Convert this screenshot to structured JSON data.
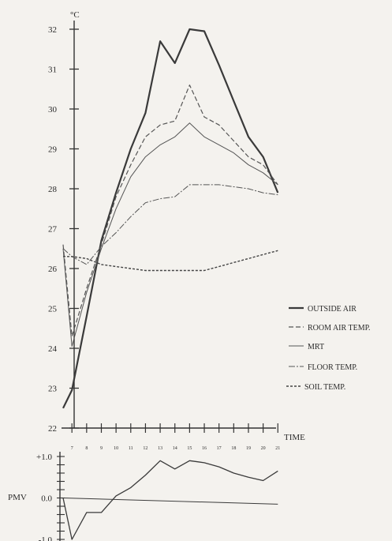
{
  "chart_data": [
    {
      "type": "line",
      "unit_label": "°C",
      "xlabel": "TIME",
      "x": [
        7,
        8,
        9,
        10,
        11,
        12,
        13,
        14,
        15,
        16,
        17,
        18,
        19,
        20,
        21
      ],
      "x_tick_labels": [
        "7",
        "8",
        "9",
        "10",
        "11",
        "12",
        "13",
        "14",
        "15",
        "16",
        "17",
        "18",
        "19",
        "20",
        "21"
      ],
      "y_ticks": [
        22,
        23,
        24,
        25,
        26,
        27,
        28,
        29,
        30,
        31,
        32
      ],
      "y_tick_labels": [
        "22",
        "23",
        "24",
        "25",
        "26",
        "27",
        "28",
        "29",
        "30",
        "31",
        "32"
      ],
      "ylim": [
        22,
        32.2
      ],
      "xlim": [
        6.4,
        21.2
      ],
      "legend_position": "right",
      "series": [
        {
          "name": "OUTSIDE AIR",
          "color": "#3a3a3a",
          "style": "solid-thick",
          "points": [
            [
              6.4,
              22.5
            ],
            [
              7,
              22.95
            ],
            [
              8,
              24.8
            ],
            [
              9,
              26.7
            ],
            [
              10,
              27.9
            ],
            [
              11,
              29.0
            ],
            [
              12,
              29.9
            ],
            [
              13,
              31.7
            ],
            [
              14,
              31.15
            ],
            [
              15,
              32.0
            ],
            [
              16,
              31.95
            ],
            [
              17,
              31.1
            ],
            [
              18,
              30.2
            ],
            [
              19,
              29.3
            ],
            [
              20,
              28.8
            ],
            [
              21,
              27.9
            ]
          ]
        },
        {
          "name": "ROOM AIR TEMP.",
          "color": "#555555",
          "style": "dashed",
          "points": [
            [
              6.4,
              26.6
            ],
            [
              7,
              24.3
            ],
            [
              8,
              25.5
            ],
            [
              9,
              26.6
            ],
            [
              10,
              27.8
            ],
            [
              11,
              28.6
            ],
            [
              12,
              29.3
            ],
            [
              13,
              29.6
            ],
            [
              14,
              29.7
            ],
            [
              15,
              30.6
            ],
            [
              16,
              29.8
            ],
            [
              17,
              29.6
            ],
            [
              18,
              29.2
            ],
            [
              19,
              28.8
            ],
            [
              20,
              28.6
            ],
            [
              21,
              28.1
            ]
          ]
        },
        {
          "name": "MRT",
          "color": "#555555",
          "style": "solid-thin",
          "points": [
            [
              6.4,
              26.5
            ],
            [
              7,
              24.05
            ],
            [
              8,
              25.4
            ],
            [
              9,
              26.5
            ],
            [
              10,
              27.5
            ],
            [
              11,
              28.3
            ],
            [
              12,
              28.8
            ],
            [
              13,
              29.1
            ],
            [
              14,
              29.3
            ],
            [
              15,
              29.65
            ],
            [
              16,
              29.3
            ],
            [
              17,
              29.1
            ],
            [
              18,
              28.9
            ],
            [
              19,
              28.6
            ],
            [
              20,
              28.4
            ],
            [
              21,
              28.1
            ]
          ]
        },
        {
          "name": "FLOOR TEMP.",
          "color": "#555555",
          "style": "dash-dot",
          "points": [
            [
              6.4,
              26.5
            ],
            [
              7,
              26.3
            ],
            [
              8,
              26.1
            ],
            [
              9,
              26.55
            ],
            [
              10,
              26.9
            ],
            [
              11,
              27.3
            ],
            [
              12,
              27.65
            ],
            [
              13,
              27.75
            ],
            [
              14,
              27.8
            ],
            [
              15,
              28.1
            ],
            [
              16,
              28.1
            ],
            [
              17,
              28.1
            ],
            [
              18,
              28.05
            ],
            [
              19,
              28.0
            ],
            [
              20,
              27.9
            ],
            [
              21,
              27.85
            ]
          ]
        },
        {
          "name": "SOIL TEMP.",
          "color": "#444444",
          "style": "short-dash",
          "points": [
            [
              6.4,
              26.3
            ],
            [
              7,
              26.3
            ],
            [
              8,
              26.25
            ],
            [
              9,
              26.1
            ],
            [
              10,
              26.05
            ],
            [
              11,
              26.0
            ],
            [
              12,
              25.95
            ],
            [
              13,
              25.95
            ],
            [
              14,
              25.95
            ],
            [
              15,
              25.95
            ],
            [
              16,
              25.95
            ],
            [
              17,
              26.05
            ],
            [
              18,
              26.15
            ],
            [
              19,
              26.25
            ],
            [
              20,
              26.35
            ],
            [
              21,
              26.45
            ]
          ]
        }
      ]
    },
    {
      "type": "line",
      "ylabel": "PMV",
      "y_ticks": [
        -1.0,
        0.0,
        1.0
      ],
      "y_tick_labels": [
        "-1.0",
        "0.0",
        "+1.0"
      ],
      "ylim": [
        -1.0,
        1.0
      ],
      "xlim": [
        6.4,
        21.2
      ],
      "series": [
        {
          "color": "#3a3a3a",
          "style": "solid",
          "points": [
            [
              6.4,
              0.0
            ],
            [
              7,
              -1.0
            ],
            [
              8,
              -0.35
            ],
            [
              9,
              -0.35
            ],
            [
              10,
              0.05
            ],
            [
              11,
              0.25
            ],
            [
              12,
              0.55
            ],
            [
              13,
              0.9
            ],
            [
              14,
              0.7
            ],
            [
              15,
              0.9
            ],
            [
              16,
              0.85
            ],
            [
              17,
              0.75
            ],
            [
              18,
              0.6
            ],
            [
              19,
              0.5
            ],
            [
              20,
              0.42
            ],
            [
              21,
              0.65
            ]
          ]
        },
        {
          "color": "#3a3a3a",
          "style": "solid-thin",
          "points": [
            [
              6.4,
              0.0
            ],
            [
              21,
              -0.15
            ]
          ]
        }
      ]
    }
  ]
}
